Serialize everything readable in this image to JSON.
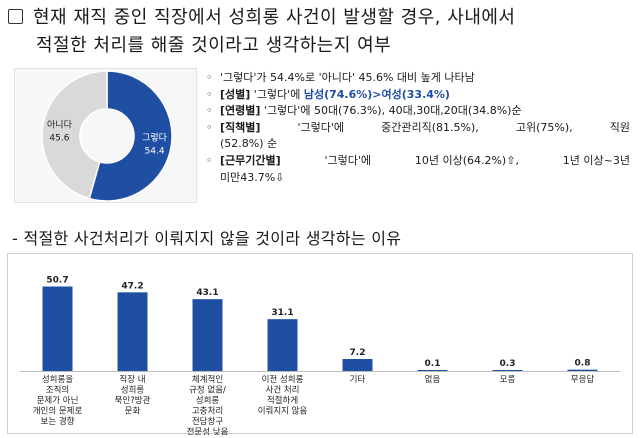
{
  "question": {
    "line1": "현재 재직 중인 직장에서 성희롱 사건이 발생할 경우, 사내에서",
    "line2": "적절한 처리를 해줄 것이라고 생각하는지 여부"
  },
  "summary": {
    "bullet_char": "◦",
    "row1": "'그렇다'가 54.4%로 '아니다' 45.6% 대비 높게 나타남",
    "row2": {
      "label": "[성별]",
      "text": " '그렇다'에 ",
      "highlight": "남성(74.6%)>여성(33.4%)"
    },
    "row3": {
      "label": "[연령별]",
      "text": " '그렇다'에 50대(76.3%), 40대,30대,20대(34.8%)순"
    },
    "row4": {
      "label": "[직책별]",
      "part1": "'그렇다'에",
      "part2": "중간관리직(81.5%),",
      "part3": "고위(75%),",
      "part4": "직원",
      "cont": "(52.8%) 순"
    },
    "row5": {
      "label": "[근무기간별]",
      "part1": "'그렇다'에",
      "part2": "10년 이상(64.2%)⇧,",
      "part3": "1년 이상~3년",
      "cont": "미만43.7%⇩"
    }
  },
  "subtitle": "- 적절한 사건처리가 이뤄지지 않을 것이라 생각하는 이유",
  "pie_chart": {
    "type": "pie",
    "slices": [
      {
        "name": "그렇다",
        "value": 54.4,
        "color": "#1f4fa3"
      },
      {
        "name": "아니다",
        "value": 45.6,
        "color": "#d9d9d9"
      }
    ]
  },
  "chart_data": {
    "type": "bar",
    "color": "#1f4fa3",
    "ylim": [
      0,
      60
    ],
    "categories": [
      [
        "성희롱을",
        "조직의",
        "문제가 아닌",
        "개인의 문제로",
        "보는 경향"
      ],
      [
        "직장 내",
        "성희롱",
        "묵인?방관",
        "문화"
      ],
      [
        "체계적인",
        "규정 없음/",
        "성희롱",
        "고충처리",
        "전담창구",
        "전문성 낮음"
      ],
      [
        "이전 성희롱",
        "사건 처리",
        "적절하게",
        "이뤄지지 않음"
      ],
      [
        "기타"
      ],
      [
        "없음"
      ],
      [
        "모름"
      ],
      [
        "무응답"
      ]
    ],
    "values": [
      50.7,
      47.2,
      43.1,
      31.1,
      7.2,
      0.1,
      0.3,
      0.8
    ],
    "value_labels": [
      "50.7",
      "47.2",
      "43.1",
      "31.1",
      "7.2",
      "0.1",
      "0.3",
      "0.8"
    ]
  }
}
